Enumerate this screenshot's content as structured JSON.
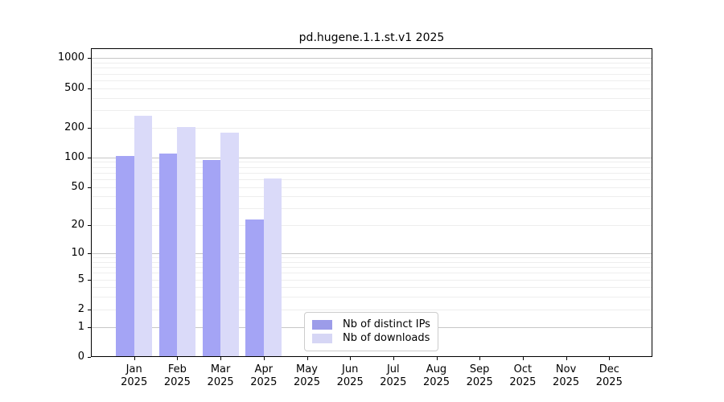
{
  "title": "pd.hugene.1.1.st.v1 2025",
  "colors": {
    "background": "#ffffff",
    "axis": "#000000",
    "major_grid": "#c6c6c6",
    "minor_grid": "#eeeeee",
    "legend_border": "#cccccc",
    "text": "#000000"
  },
  "chart_data": {
    "type": "bar",
    "title": "pd.hugene.1.1.st.v1 2025",
    "year": "2025",
    "months": [
      "Jan",
      "Feb",
      "Mar",
      "Apr",
      "May",
      "Jun",
      "Jul",
      "Aug",
      "Sep",
      "Oct",
      "Nov",
      "Dec"
    ],
    "categories": [
      "Jan 2025",
      "Feb 2025",
      "Mar 2025",
      "Apr 2025",
      "May 2025",
      "Jun 2025",
      "Jul 2025",
      "Aug 2025",
      "Sep 2025",
      "Oct 2025",
      "Nov 2025",
      "Dec 2025"
    ],
    "series": [
      {
        "name": "Nb of distinct IPs",
        "color": "#a4a4f5",
        "values": [
          104,
          109,
          95,
          23,
          0,
          0,
          0,
          0,
          0,
          0,
          0,
          0
        ]
      },
      {
        "name": "Nb of downloads",
        "color": "#dadaf9",
        "values": [
          263,
          204,
          177,
          61,
          0,
          0,
          0,
          0,
          0,
          0,
          0,
          0
        ]
      }
    ],
    "yscale": "log10(value+1)",
    "yticks": [
      0,
      1,
      2,
      5,
      10,
      20,
      50,
      100,
      200,
      500,
      1000
    ],
    "major_grid_values": [
      1,
      10,
      100,
      1000
    ],
    "minor_grid_values": [
      2,
      3,
      4,
      5,
      6,
      7,
      8,
      9,
      20,
      30,
      40,
      50,
      60,
      70,
      80,
      90,
      200,
      300,
      400,
      500,
      600,
      700,
      800,
      900
    ],
    "ylim": [
      0,
      1259
    ],
    "grid": "major+minor",
    "legend": {
      "position": "inside-bottom-center",
      "items": [
        {
          "label": "Nb of distinct IPs",
          "swatch_color": "#9c9ce9"
        },
        {
          "label": "Nb of downloads",
          "swatch_color": "#d6d6f5"
        }
      ]
    }
  }
}
